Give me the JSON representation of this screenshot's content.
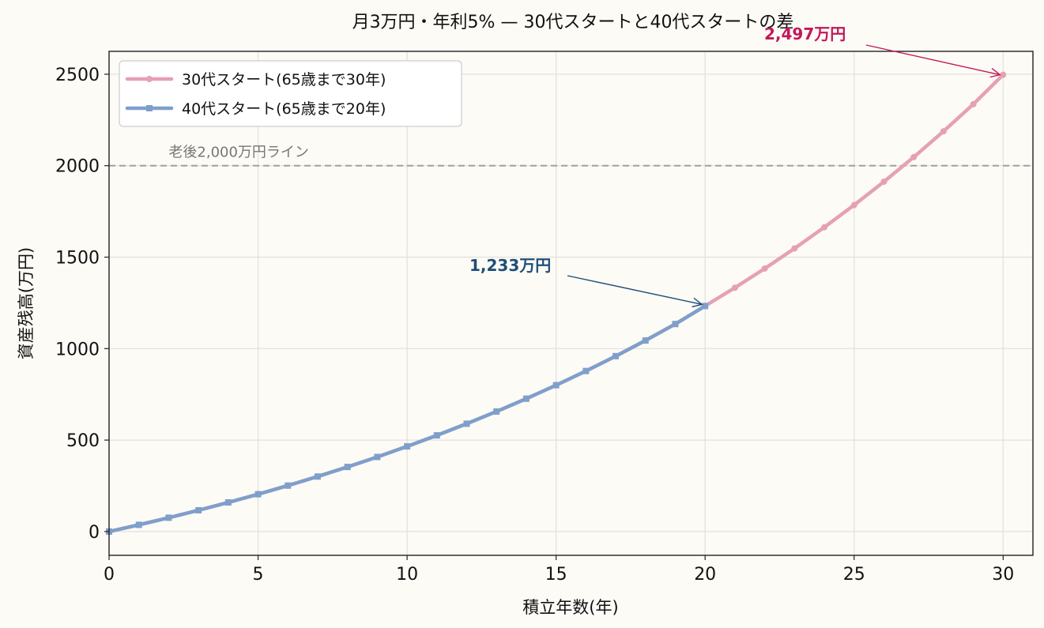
{
  "chart_data": {
    "type": "line",
    "title": "月3万円・年利5% — 30代スタートと40代スタートの差",
    "xlabel": "積立年数(年)",
    "ylabel": "資産残高(万円)",
    "xlim": [
      0,
      31
    ],
    "ylim": [
      -130,
      2625
    ],
    "xticks": [
      "0",
      "5",
      "10",
      "15",
      "20",
      "25",
      "30"
    ],
    "yticks": [
      "0",
      "500",
      "1000",
      "1500",
      "2000",
      "2500"
    ],
    "grid": true,
    "legend_position": "top-left",
    "series": [
      {
        "name": "30代スタート(65歳まで30年)",
        "color": "#e6a0b4",
        "marker": "circle",
        "x": [
          0,
          1,
          2,
          3,
          4,
          5,
          6,
          7,
          8,
          9,
          10,
          11,
          12,
          13,
          14,
          15,
          16,
          17,
          18,
          19,
          20,
          21,
          22,
          23,
          24,
          25,
          26,
          27,
          28,
          29,
          30
        ],
        "y": [
          0,
          36.8,
          75.5,
          116.3,
          159.1,
          204.0,
          251.2,
          300.9,
          353.0,
          407.8,
          465.4,
          525.8,
          589.4,
          656.1,
          726.3,
          800.0,
          877.5,
          958.9,
          1044.4,
          1134.3,
          1233.0,
          1333.0,
          1437.6,
          1547.6,
          1663.3,
          1784.8,
          1912.5,
          2046.8,
          2187.9,
          2336.2,
          2497.0
        ]
      },
      {
        "name": "40代スタート(65歳まで20年)",
        "color": "#7f9fcb",
        "marker": "square",
        "x": [
          0,
          1,
          2,
          3,
          4,
          5,
          6,
          7,
          8,
          9,
          10,
          11,
          12,
          13,
          14,
          15,
          16,
          17,
          18,
          19,
          20
        ],
        "y": [
          0,
          36.8,
          75.5,
          116.3,
          159.1,
          204.0,
          251.2,
          300.9,
          353.0,
          407.8,
          465.4,
          525.8,
          589.4,
          656.1,
          726.3,
          800.0,
          877.5,
          958.9,
          1044.4,
          1134.3,
          1233.0
        ]
      }
    ],
    "reference_line": {
      "y": 2000,
      "label": "老後2,000万円ライン",
      "color": "#a0a0a0"
    },
    "annotations": [
      {
        "text": "1,233万円",
        "x": 20,
        "y": 1233,
        "color": "#1f4e79"
      },
      {
        "text": "2,497万円",
        "x": 30,
        "y": 2497,
        "color": "#c2185b"
      }
    ]
  }
}
